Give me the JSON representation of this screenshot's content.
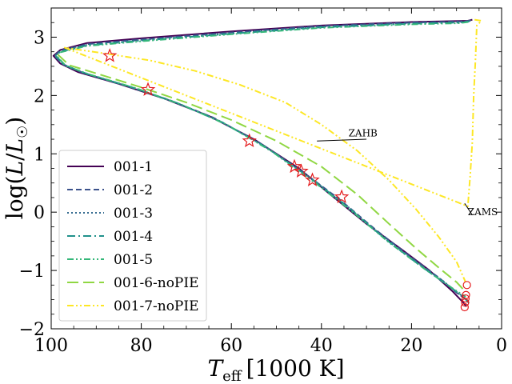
{
  "chart_data": {
    "type": "line",
    "title": "",
    "xlabel": "T_eff [1000 K]",
    "xlabel_parts": {
      "symbol": "T",
      "subscript": "eff",
      "unit": "[1000 K]"
    },
    "ylabel": "log(L/L☉)",
    "ylabel_parts": {
      "log": "log(",
      "L": "L",
      "slash": "/",
      "Lsun": "L",
      "sun": "☉",
      "close": ")"
    },
    "xlim": [
      100,
      0
    ],
    "ylim": [
      -2,
      3.5
    ],
    "x_ticks": [
      100,
      80,
      60,
      40,
      20,
      0
    ],
    "x_tick_labels": [
      "100",
      "80",
      "60",
      "40",
      "20",
      "0"
    ],
    "y_ticks": [
      -2,
      -1,
      0,
      1,
      2,
      3
    ],
    "y_tick_labels": [
      "−2",
      "−1",
      "0",
      "1",
      "2",
      "3"
    ],
    "grid": false,
    "legend_position": "lower-left",
    "series": [
      {
        "name": "001-1",
        "color": "#440154",
        "dash": "solid",
        "points": [
          [
            6.5,
            3.3
          ],
          [
            7.5,
            3.28
          ],
          [
            20,
            3.26
          ],
          [
            40,
            3.2
          ],
          [
            60,
            3.1
          ],
          [
            80,
            2.98
          ],
          [
            92,
            2.9
          ],
          [
            98,
            2.78
          ],
          [
            99.5,
            2.68
          ],
          [
            98,
            2.55
          ],
          [
            94,
            2.4
          ],
          [
            85,
            2.2
          ],
          [
            75,
            1.95
          ],
          [
            65,
            1.65
          ],
          [
            55,
            1.25
          ],
          [
            45,
            0.75
          ],
          [
            38,
            0.3
          ],
          [
            30,
            -0.2
          ],
          [
            22,
            -0.65
          ],
          [
            16,
            -1.0
          ],
          [
            11,
            -1.35
          ],
          [
            8.5,
            -1.55
          ],
          [
            7.8,
            -1.62
          ]
        ]
      },
      {
        "name": "001-2",
        "color": "#3b528b",
        "dash": "dashed",
        "points": [
          [
            6.8,
            3.29
          ],
          [
            8,
            3.27
          ],
          [
            20,
            3.25
          ],
          [
            40,
            3.19
          ],
          [
            60,
            3.08
          ],
          [
            80,
            2.96
          ],
          [
            92,
            2.88
          ],
          [
            98,
            2.77
          ],
          [
            99.3,
            2.68
          ],
          [
            97.5,
            2.54
          ],
          [
            93,
            2.39
          ],
          [
            84,
            2.18
          ],
          [
            74,
            1.93
          ],
          [
            64,
            1.62
          ],
          [
            54,
            1.2
          ],
          [
            44,
            0.68
          ],
          [
            36,
            0.22
          ],
          [
            28,
            -0.3
          ],
          [
            20,
            -0.78
          ],
          [
            14,
            -1.12
          ],
          [
            10,
            -1.38
          ],
          [
            8.2,
            -1.48
          ]
        ]
      },
      {
        "name": "001-3",
        "color": "#31688e",
        "dash": "dotted",
        "points": [
          [
            7,
            3.28
          ],
          [
            8.5,
            3.26
          ],
          [
            20,
            3.24
          ],
          [
            40,
            3.18
          ],
          [
            60,
            3.07
          ],
          [
            80,
            2.95
          ],
          [
            92,
            2.87
          ],
          [
            98,
            2.76
          ],
          [
            99.2,
            2.68
          ],
          [
            97.3,
            2.53
          ],
          [
            92.5,
            2.38
          ],
          [
            83,
            2.16
          ],
          [
            73,
            1.9
          ],
          [
            63,
            1.58
          ],
          [
            53,
            1.15
          ],
          [
            43,
            0.62
          ],
          [
            35,
            0.15
          ],
          [
            27,
            -0.38
          ],
          [
            19,
            -0.85
          ],
          [
            13,
            -1.18
          ],
          [
            9.5,
            -1.4
          ],
          [
            8,
            -1.45
          ]
        ]
      },
      {
        "name": "001-4",
        "color": "#21918c",
        "dash": "dashdot",
        "points": [
          [
            7.2,
            3.27
          ],
          [
            9,
            3.25
          ],
          [
            20,
            3.23
          ],
          [
            40,
            3.17
          ],
          [
            60,
            3.06
          ],
          [
            80,
            2.94
          ],
          [
            92,
            2.86
          ],
          [
            98,
            2.75
          ],
          [
            99,
            2.68
          ],
          [
            97,
            2.52
          ],
          [
            92,
            2.37
          ],
          [
            82,
            2.14
          ],
          [
            72,
            1.87
          ],
          [
            62,
            1.54
          ],
          [
            52,
            1.1
          ],
          [
            42,
            0.56
          ],
          [
            34,
            0.08
          ],
          [
            26,
            -0.45
          ],
          [
            18,
            -0.92
          ],
          [
            12,
            -1.25
          ],
          [
            8.5,
            -1.45
          ],
          [
            7,
            -1.58
          ]
        ]
      },
      {
        "name": "001-5",
        "color": "#35b779",
        "dash": "dashdotdot",
        "points": [
          [
            7.4,
            3.26
          ],
          [
            9.5,
            3.24
          ],
          [
            20,
            3.22
          ],
          [
            40,
            3.16
          ],
          [
            60,
            3.05
          ],
          [
            80,
            2.93
          ],
          [
            92,
            2.85
          ],
          [
            98,
            2.74
          ],
          [
            98.8,
            2.68
          ],
          [
            96.8,
            2.51
          ],
          [
            91.5,
            2.36
          ],
          [
            81,
            2.12
          ],
          [
            71,
            1.84
          ],
          [
            61,
            1.5
          ],
          [
            51,
            1.04
          ],
          [
            41,
            0.48
          ],
          [
            33,
            0.0
          ],
          [
            25,
            -0.52
          ],
          [
            17,
            -0.98
          ],
          [
            11,
            -1.3
          ],
          [
            8,
            -1.45
          ]
        ]
      },
      {
        "name": "001-6-noPIE",
        "color": "#90d743",
        "dash": "longdash",
        "points": [
          [
            98.5,
            2.7
          ],
          [
            96,
            2.52
          ],
          [
            90,
            2.38
          ],
          [
            80,
            2.14
          ],
          [
            70,
            1.88
          ],
          [
            60,
            1.58
          ],
          [
            50,
            1.22
          ],
          [
            40,
            0.78
          ],
          [
            32,
            0.3
          ],
          [
            25,
            -0.2
          ],
          [
            19,
            -0.62
          ],
          [
            14,
            -0.95
          ],
          [
            10,
            -1.2
          ],
          [
            8.2,
            -1.35
          ]
        ]
      },
      {
        "name": "001-7-noPIE",
        "color": "#fde725",
        "dash": "dashdotdot",
        "points": [
          [
            6,
            3.3
          ],
          [
            4.5,
            3.28
          ],
          [
            5.5,
            3.2
          ],
          [
            5.8,
            2.6
          ],
          [
            6.2,
            2.0
          ],
          [
            6.5,
            1.2
          ],
          [
            7,
            0.6
          ],
          [
            7.5,
            0.1
          ],
          [
            97,
            2.82
          ],
          [
            88,
            2.72
          ],
          [
            78,
            2.6
          ],
          [
            68,
            2.42
          ],
          [
            58,
            2.18
          ],
          [
            48,
            1.88
          ],
          [
            40,
            1.5
          ],
          [
            32,
            1.05
          ],
          [
            25,
            0.55
          ],
          [
            19,
            0.05
          ],
          [
            14,
            -0.42
          ],
          [
            10,
            -0.85
          ],
          [
            8,
            -1.2
          ]
        ]
      }
    ],
    "markers": [
      {
        "type": "star",
        "color": "#e41a1c",
        "points": [
          [
            87,
            2.68
          ],
          [
            78.5,
            2.1
          ],
          [
            56,
            1.22
          ],
          [
            46,
            0.78
          ],
          [
            44.5,
            0.7
          ],
          [
            42,
            0.55
          ],
          [
            35.5,
            0.26
          ]
        ]
      },
      {
        "type": "circle",
        "color": "#e41a1c",
        "points": [
          [
            7.7,
            -1.25
          ],
          [
            7.9,
            -1.42
          ],
          [
            8.0,
            -1.48
          ],
          [
            8.1,
            -1.55
          ],
          [
            8.2,
            -1.63
          ]
        ]
      }
    ],
    "annotations": [
      {
        "text": "ZAHB",
        "x": 34,
        "y": 1.3,
        "line": [
          [
            41,
            1.22
          ],
          [
            30,
            1.25
          ]
        ]
      },
      {
        "text": "ZAMS",
        "x": 7.5,
        "y": -0.05,
        "line": [
          [
            8.2,
            0.15
          ],
          [
            6.5,
            -0.05
          ]
        ]
      }
    ]
  }
}
